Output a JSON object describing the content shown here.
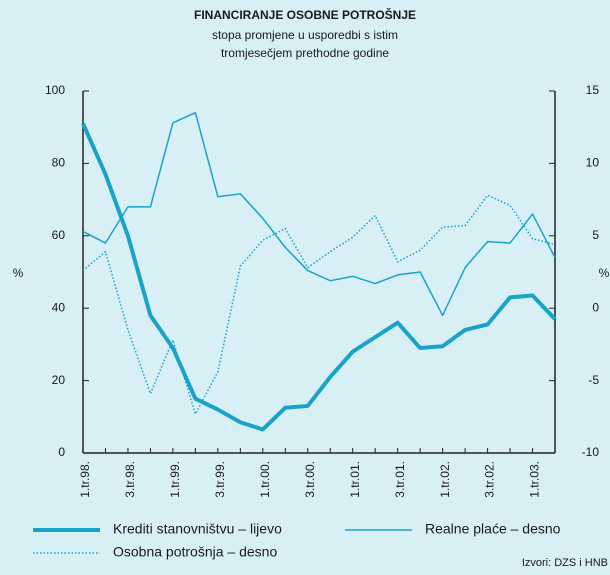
{
  "chart_data": {
    "type": "line",
    "title": "FINANCIRANJE OSOBNE POTROŠNJE",
    "subtitle": [
      "stopa promjene u usporedbi s istim",
      "tromjesečjem prethodne godine"
    ],
    "ylabel": "%",
    "y2label": "%",
    "source": "Izvori: DZS i HNB",
    "categories": [
      "1.tr.98.",
      null,
      "3.tr.98.",
      null,
      "1.tr.99.",
      null,
      "3.tr.99.",
      null,
      "1.tr.00.",
      null,
      "3.tr.00.",
      null,
      "1.tr.01.",
      null,
      "3.tr.01.",
      null,
      "1.tr.02.",
      null,
      "3.tr.02.",
      null,
      "1.tr.03.",
      null
    ],
    "ylim": [
      0,
      100
    ],
    "yticks": [
      0,
      20,
      40,
      60,
      80,
      100
    ],
    "y2lim": [
      -10,
      15
    ],
    "y2ticks": [
      -10,
      -5,
      0,
      5,
      10,
      15
    ],
    "series": [
      {
        "name": "Krediti stanovništvu – lijevo",
        "color": "#1aa3c8",
        "style": "thick",
        "axis": "y",
        "values": [
          91,
          77,
          60,
          38,
          29,
          15,
          12,
          8.5,
          6.5,
          12.5,
          13,
          21,
          28,
          32,
          36,
          29,
          29.5,
          34,
          35.5,
          43,
          43.5,
          37
        ]
      },
      {
        "name": "Realne plaće – desno",
        "color": "#1aa3c8",
        "style": "thin",
        "axis": "y2",
        "values": [
          5.3,
          4.5,
          7,
          7,
          12.8,
          13.5,
          7.7,
          7.9,
          6.2,
          4.2,
          2.6,
          1.9,
          2.2,
          1.7,
          2.3,
          2.5,
          -0.5,
          2.8,
          4.6,
          4.5,
          6.5,
          3.5
        ]
      },
      {
        "name": "Osobna potrošnja – desno",
        "color": "#1aa3c8",
        "style": "dotted",
        "axis": "y2",
        "values": [
          2.6,
          3.9,
          -1.5,
          -5.9,
          -2.2,
          -7.3,
          -4.4,
          2.9,
          4.7,
          5.5,
          2.8,
          3.9,
          4.9,
          6.4,
          3.2,
          4.0,
          5.6,
          5.7,
          7.8,
          7.1,
          4.8,
          4.4
        ]
      }
    ]
  }
}
